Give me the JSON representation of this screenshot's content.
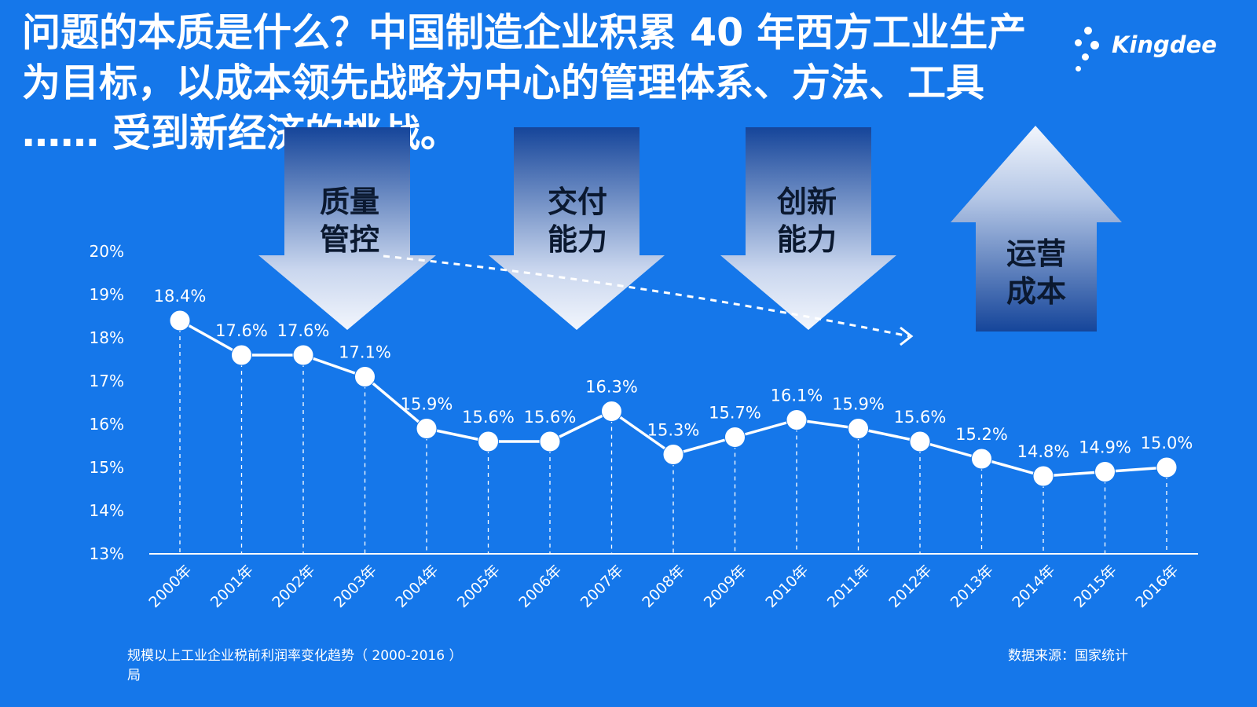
{
  "slide": {
    "title": "问题的本质是什么？中国制造企业积累 40 年西方工业生产为目标，以成本领先战略为中心的管理体系、方法、工具 …… 受到新经济的挑战。",
    "logo_text": "Kingdee",
    "caption": "规模以上工业企业税前利润率变化趋势（ 2000-2016 ）",
    "caption_tail": "局",
    "source": "数据来源：国家统计"
  },
  "arrows": [
    {
      "text_line1": "质量",
      "text_line2": "管控",
      "direction": "down"
    },
    {
      "text_line1": "交付",
      "text_line2": "能力",
      "direction": "down"
    },
    {
      "text_line1": "创新",
      "text_line2": "能力",
      "direction": "down"
    },
    {
      "text_line1": "运营",
      "text_line2": "成本",
      "direction": "up"
    }
  ],
  "colors": {
    "background": "#1577ea",
    "line": "#ffffff",
    "arrow_light": "#e9f0fb",
    "arrow_dark": "#15459a"
  },
  "chart_data": {
    "type": "line",
    "categories": [
      "2000年",
      "2001年",
      "2002年",
      "2003年",
      "2004年",
      "2005年",
      "2006年",
      "2007年",
      "2008年",
      "2009年",
      "2010年",
      "2011年",
      "2012年",
      "2013年",
      "2014年",
      "2015年",
      "2016年"
    ],
    "series": [
      {
        "values": [
          18.4,
          17.6,
          17.6,
          17.1,
          15.9,
          15.6,
          15.6,
          16.3,
          15.3,
          15.7,
          16.1,
          15.9,
          15.6,
          15.2,
          14.8,
          14.9,
          15.0
        ],
        "labels": [
          "18.4%",
          "17.6%",
          "17.6%",
          "17.1%",
          "15.9%",
          "15.6%",
          "15.6%",
          "16.3%",
          "15.3%",
          "15.7%",
          "16.1%",
          "15.9%",
          "15.6%",
          "15.2%",
          "14.8%",
          "14.9%",
          "15.0%"
        ]
      }
    ],
    "yticks": [
      "13%",
      "14%",
      "15%",
      "16%",
      "17%",
      "18%",
      "19%",
      "20%"
    ],
    "ylim": [
      13,
      20
    ],
    "grid": false,
    "legend": "none"
  }
}
